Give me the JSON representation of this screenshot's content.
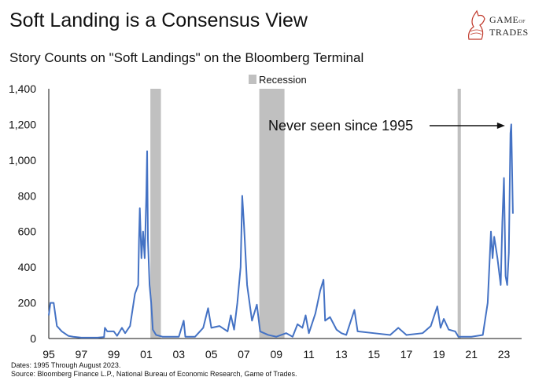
{
  "title": "Soft Landing is a Consensus View",
  "subtitle": "Story Counts on \"Soft Landings\" on the Bloomberg Terminal",
  "logo": {
    "line1": "GAME",
    "of": "OF",
    "line2": "TRADES"
  },
  "notes": [
    "Dates: 1995 Through August 2023.",
    "Source: Bloomberg Finance L.P., National Bureau of Economic Research, Game of Trades."
  ],
  "chart_data": {
    "type": "line",
    "title": "Story Counts on \"Soft Landings\" on the Bloomberg Terminal",
    "xlabel": "",
    "ylabel": "",
    "xlim": [
      1995,
      2023.7
    ],
    "ylim": [
      0,
      1400
    ],
    "yticks": [
      0,
      200,
      400,
      600,
      800,
      1000,
      1200,
      1400
    ],
    "ytick_labels": [
      "0",
      "200",
      "400",
      "600",
      "800",
      "1,000",
      "1,200",
      "1,400"
    ],
    "xtick_labels": [
      "95",
      "97",
      "99",
      "01",
      "03",
      "05",
      "07",
      "09",
      "11",
      "13",
      "15",
      "17",
      "19",
      "21",
      "23"
    ],
    "xticks": [
      1995,
      1997,
      1999,
      2001,
      2003,
      2005,
      2007,
      2009,
      2011,
      2013,
      2015,
      2017,
      2019,
      2021,
      2023
    ],
    "grid": false,
    "legend": {
      "position": "top-center",
      "entries": [
        "Recession"
      ]
    },
    "recession_color": "#c0c0c0",
    "line_color": "#4472c4",
    "recessions": [
      [
        2001.25,
        2001.9
      ],
      [
        2007.95,
        2009.5
      ],
      [
        2020.15,
        2020.35
      ]
    ],
    "annotation": {
      "text": "Never seen since 1995",
      "points_to": [
        2023.45,
        1200
      ]
    },
    "series": [
      {
        "x": [
          1995.0,
          1995.1,
          1995.3,
          1995.5,
          1995.8,
          1996.2,
          1996.5,
          1997,
          1998,
          1998.4,
          1998.45,
          1998.6,
          1999,
          1999.2,
          1999.5,
          1999.7,
          2000,
          2000.3,
          2000.5,
          2000.55,
          2000.6,
          2000.7,
          2000.8,
          2000.9,
          2001.0,
          2001.05,
          2001.1,
          2001.2,
          2001.3,
          2001.4,
          2001.6,
          2002,
          2003,
          2003.3,
          2003.4,
          2004,
          2004.5,
          2004.8,
          2005,
          2005.5,
          2006,
          2006.2,
          2006.4,
          2006.6,
          2006.8,
          2006.9,
          2007.0,
          2007.2,
          2007.5,
          2007.8,
          2008,
          2008.5,
          2009,
          2009.6,
          2010,
          2010.3,
          2010.6,
          2010.8,
          2011,
          2011.4,
          2011.7,
          2011.9,
          2012,
          2012.3,
          2012.7,
          2013,
          2013.3,
          2013.8,
          2014,
          2015,
          2016,
          2016.5,
          2017,
          2018,
          2018.5,
          2018.9,
          2019.1,
          2019.3,
          2019.6,
          2020,
          2020.2,
          2021,
          2021.7,
          2022,
          2022.2,
          2022.3,
          2022.4,
          2022.6,
          2022.8,
          2022.9,
          2023.0,
          2023.1,
          2023.2,
          2023.3,
          2023.4,
          2023.45,
          2023.55
        ],
        "values": [
          130,
          200,
          200,
          70,
          40,
          15,
          10,
          5,
          5,
          8,
          60,
          40,
          40,
          15,
          60,
          30,
          70,
          250,
          300,
          550,
          730,
          450,
          600,
          450,
          800,
          1050,
          550,
          300,
          200,
          50,
          20,
          10,
          10,
          100,
          10,
          10,
          60,
          170,
          60,
          70,
          40,
          130,
          50,
          200,
          400,
          800,
          650,
          300,
          100,
          190,
          40,
          20,
          10,
          30,
          10,
          80,
          60,
          130,
          30,
          140,
          270,
          330,
          100,
          120,
          50,
          30,
          20,
          160,
          40,
          30,
          20,
          60,
          20,
          30,
          70,
          180,
          60,
          110,
          50,
          40,
          10,
          10,
          20,
          200,
          600,
          450,
          570,
          450,
          300,
          650,
          900,
          350,
          300,
          480,
          1150,
          1200,
          700
        ]
      }
    ]
  }
}
